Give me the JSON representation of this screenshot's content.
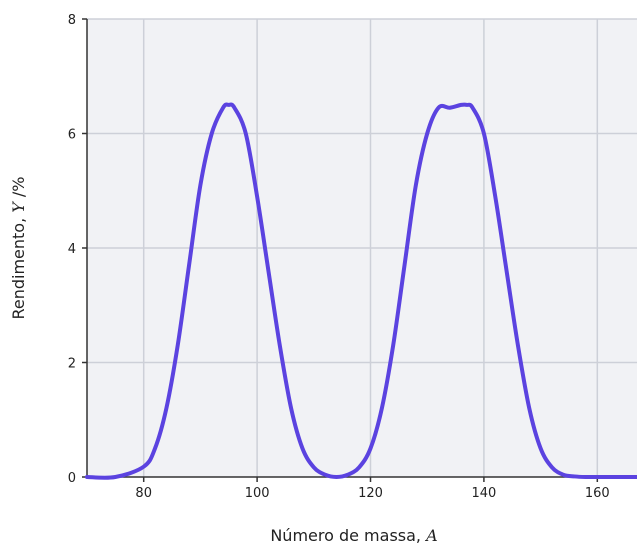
{
  "chart_data": {
    "type": "line",
    "xlabel_text": "Número de massa, ",
    "xlabel_var": "A",
    "ylabel_text": "Rendimento, ",
    "ylabel_var": "Y",
    "ylabel_unit": " /%",
    "xlim": [
      70,
      167
    ],
    "ylim": [
      0,
      8
    ],
    "x_ticks": [
      80,
      100,
      120,
      140,
      160
    ],
    "y_ticks": [
      0,
      2,
      4,
      6,
      8
    ],
    "grid": true,
    "series": [
      {
        "color": "#5b43e0",
        "x": [
          70,
          75,
          80,
          82,
          84,
          86,
          88,
          90,
          92,
          94,
          95,
          96,
          98,
          100,
          102,
          104,
          106,
          108,
          110,
          112,
          114,
          116,
          118,
          120,
          122,
          124,
          126,
          128,
          130,
          132,
          134,
          136,
          137,
          138,
          140,
          142,
          144,
          146,
          148,
          150,
          152,
          154,
          156,
          158,
          160,
          162,
          164,
          167
        ],
        "y": [
          0.0,
          0.0,
          0.18,
          0.5,
          1.2,
          2.3,
          3.7,
          5.1,
          6.0,
          6.45,
          6.5,
          6.45,
          6.0,
          4.9,
          3.6,
          2.3,
          1.2,
          0.5,
          0.17,
          0.04,
          0.0,
          0.04,
          0.17,
          0.5,
          1.2,
          2.3,
          3.7,
          5.1,
          6.0,
          6.45,
          6.45,
          6.5,
          6.5,
          6.45,
          6.0,
          4.9,
          3.6,
          2.3,
          1.2,
          0.5,
          0.17,
          0.04,
          0.01,
          0.0,
          0.0,
          0.0,
          0.0,
          0.0
        ]
      }
    ]
  }
}
